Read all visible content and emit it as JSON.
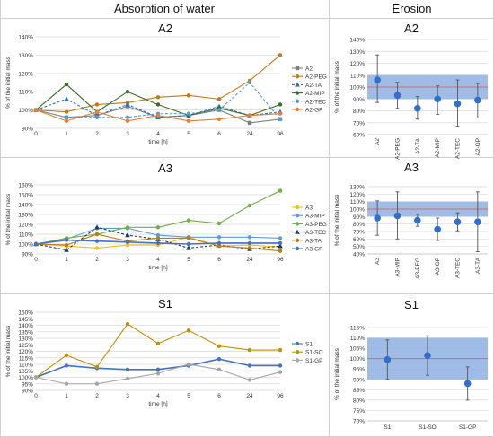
{
  "headers": {
    "left": "Absorption of water",
    "right": "Erosion"
  },
  "absorption_panels": [
    {
      "title": "A2",
      "xlabel": "time [h]",
      "ylabel": "% of the initial mass",
      "x_ticks": [
        "0",
        "1",
        "2",
        "3",
        "4",
        "5",
        "6",
        "24",
        "96"
      ],
      "y_ticks": [
        "90%",
        "100%",
        "110%",
        "120%",
        "130%",
        "140%"
      ],
      "ylim": [
        90,
        140
      ]
    },
    {
      "title": "A3",
      "xlabel": "time [h]",
      "ylabel": "% of the initial mass",
      "x_ticks": [
        "0",
        "1",
        "2",
        "3",
        "4",
        "5",
        "6",
        "24",
        "96"
      ],
      "y_ticks": [
        "90%",
        "100%",
        "110%",
        "120%",
        "130%",
        "140%",
        "150%",
        "160%"
      ],
      "ylim": [
        90,
        160
      ]
    },
    {
      "title": "S1",
      "xlabel": "time [h]",
      "ylabel": "% of the initial mass",
      "x_ticks": [
        "0",
        "1",
        "2",
        "3",
        "4",
        "5",
        "6",
        "24",
        "96"
      ],
      "y_ticks": [
        "90%",
        "95%",
        "100%",
        "105%",
        "110%",
        "115%",
        "120%",
        "125%",
        "130%",
        "135%",
        "140%",
        "145%",
        "150%"
      ],
      "ylim": [
        90,
        150
      ]
    }
  ],
  "erosion_panels": [
    {
      "title": "A2",
      "ylabel": "% of the initial mass",
      "y_ticks": [
        "60%",
        "70%",
        "80%",
        "90%",
        "100%",
        "110%",
        "120%",
        "130%",
        "140%"
      ],
      "ylim": [
        60,
        140
      ],
      "categories": [
        "A2",
        "A2-PEG",
        "A2-TA",
        "A2-MIP",
        "A2-TEC",
        "A2-GP"
      ]
    },
    {
      "title": "A3",
      "ylabel": "% of the initial mass",
      "y_ticks": [
        "40%",
        "50%",
        "60%",
        "70%",
        "80%",
        "90%",
        "100%",
        "110%",
        "120%",
        "130%"
      ],
      "ylim": [
        40,
        130
      ],
      "categories": [
        "A3",
        "A3-MIP",
        "A3-PEG",
        "A3-GP",
        "A3-TEC",
        "A3-TA"
      ]
    },
    {
      "title": "S1",
      "ylabel": "% of the initial mass",
      "y_ticks": [
        "70%",
        "75%",
        "80%",
        "85%",
        "90%",
        "95%",
        "100%",
        "105%",
        "110%",
        "115%"
      ],
      "ylim": [
        70,
        115
      ],
      "categories": [
        "S1",
        "S1-SO",
        "S1-GP"
      ]
    }
  ],
  "chart_data": [
    {
      "type": "line",
      "title": "A2",
      "x": [
        "0",
        "1",
        "2",
        "3",
        "4",
        "5",
        "6",
        "24",
        "96"
      ],
      "xlabel": "time [h]",
      "ylabel": "% of the initial mass",
      "ylim": [
        90,
        140
      ],
      "legend": "right",
      "series": [
        {
          "name": "A2",
          "color": "#7f7f7f",
          "dash": false,
          "marker": "square",
          "values": [
            100,
            96,
            97,
            102,
            96,
            97,
            100,
            93,
            95
          ]
        },
        {
          "name": "A2-PEG",
          "color": "#c07a12",
          "dash": false,
          "marker": "circle",
          "values": [
            100,
            99,
            103,
            104,
            107,
            108,
            106,
            116,
            130
          ]
        },
        {
          "name": "A2-TA",
          "color": "#2e75b6",
          "dash": true,
          "marker": "triangle",
          "values": [
            100,
            106,
            97,
            103,
            96,
            97,
            102,
            97,
            99
          ]
        },
        {
          "name": "A2-MIP",
          "color": "#3a6e2a",
          "dash": false,
          "marker": "circle",
          "values": [
            100,
            114,
            99,
            110,
            103,
            97,
            101,
            97,
            103
          ]
        },
        {
          "name": "A2-TEC",
          "color": "#5b9bd5",
          "dash": true,
          "marker": "circle",
          "values": [
            100,
            96,
            96,
            96,
            98,
            98,
            100,
            115,
            95
          ]
        },
        {
          "name": "A2-GP",
          "color": "#ed7d31",
          "dash": false,
          "marker": "circle",
          "values": [
            100,
            94,
            99,
            94,
            97,
            94,
            95,
            97,
            98
          ]
        }
      ]
    },
    {
      "type": "line",
      "title": "A3",
      "x": [
        "0",
        "1",
        "2",
        "3",
        "4",
        "5",
        "6",
        "24",
        "96"
      ],
      "xlabel": "time [h]",
      "ylabel": "% of the initial mass",
      "ylim": [
        90,
        160
      ],
      "legend": "right",
      "series": [
        {
          "name": "A3",
          "color": "#ffc000",
          "dash": false,
          "marker": "circle",
          "values": [
            100,
            98,
            96,
            99,
            99,
            107,
            98,
            99,
            97
          ]
        },
        {
          "name": "A3-MIP",
          "color": "#5b9bd5",
          "dash": false,
          "marker": "circle",
          "values": [
            100,
            105,
            116,
            116,
            109,
            107,
            107,
            107,
            106
          ]
        },
        {
          "name": "A3-PEG",
          "color": "#70ad47",
          "dash": false,
          "marker": "circle",
          "values": [
            100,
            106,
            110,
            117,
            117,
            124,
            121,
            139,
            154
          ]
        },
        {
          "name": "A3-TEC",
          "color": "#1f3864",
          "dash": true,
          "marker": "triangle",
          "values": [
            100,
            94,
            117,
            109,
            105,
            96,
            99,
            95,
            98
          ]
        },
        {
          "name": "A3-TA",
          "color": "#c07a12",
          "dash": false,
          "marker": "circle",
          "values": [
            100,
            99,
            110,
            103,
            106,
            106,
            98,
            96,
            93
          ]
        },
        {
          "name": "A3-GP",
          "color": "#4472c4",
          "dash": false,
          "marker": "circle",
          "values": [
            100,
            104,
            103,
            102,
            101,
            100,
            101,
            101,
            101
          ]
        }
      ]
    },
    {
      "type": "line",
      "title": "S1",
      "x": [
        "0",
        "1",
        "2",
        "3",
        "4",
        "5",
        "6",
        "24",
        "96"
      ],
      "xlabel": "time [h]",
      "ylabel": "% of the initial mass",
      "ylim": [
        90,
        150
      ],
      "legend": "right",
      "series": [
        {
          "name": "S1",
          "color": "#4472c4",
          "dash": false,
          "marker": "circle",
          "values": [
            100,
            109,
            107,
            106,
            106,
            109,
            114,
            109,
            109
          ]
        },
        {
          "name": "S1-SO",
          "color": "#bf9000",
          "dash": false,
          "marker": "circle",
          "values": [
            100,
            117,
            108,
            141,
            126,
            136,
            124,
            121,
            121
          ]
        },
        {
          "name": "S1-GP",
          "color": "#a5a5a5",
          "dash": false,
          "marker": "circle",
          "values": [
            100,
            95,
            95,
            99,
            103,
            110,
            106,
            98,
            104
          ]
        }
      ]
    },
    {
      "type": "scatter",
      "title": "A2",
      "categories": [
        "A2",
        "A2-PEG",
        "A2-TA",
        "A2-MIP",
        "A2-TEC",
        "A2-GP"
      ],
      "ylabel": "% of the initial mass",
      "ylim": [
        60,
        140
      ],
      "band": [
        90,
        110
      ],
      "reference": 100,
      "values": [
        106,
        93,
        82,
        90,
        86,
        89
      ],
      "err_low": [
        87,
        82,
        73,
        77,
        67,
        74
      ],
      "err_high": [
        127,
        104,
        92,
        101,
        106,
        103
      ]
    },
    {
      "type": "scatter",
      "title": "A3",
      "categories": [
        "A3",
        "A3-MIP",
        "A3-PEG",
        "A3-GP",
        "A3-TEC",
        "A3-TA"
      ],
      "ylabel": "% of the initial mass",
      "ylim": [
        40,
        130
      ],
      "band": [
        90,
        110
      ],
      "reference": 100,
      "values": [
        88,
        91,
        85,
        73,
        83,
        83
      ],
      "err_low": [
        65,
        60,
        77,
        58,
        71,
        43
      ],
      "err_high": [
        111,
        123,
        93,
        88,
        95,
        123
      ]
    },
    {
      "type": "scatter",
      "title": "S1",
      "categories": [
        "S1",
        "S1-SO",
        "S1-GP"
      ],
      "ylabel": "% of the initial mass",
      "ylim": [
        70,
        115
      ],
      "band": [
        90,
        110
      ],
      "reference": 100,
      "values": [
        99.5,
        101.5,
        88
      ],
      "err_low": [
        90,
        92,
        80
      ],
      "err_high": [
        109,
        111,
        96
      ]
    }
  ]
}
